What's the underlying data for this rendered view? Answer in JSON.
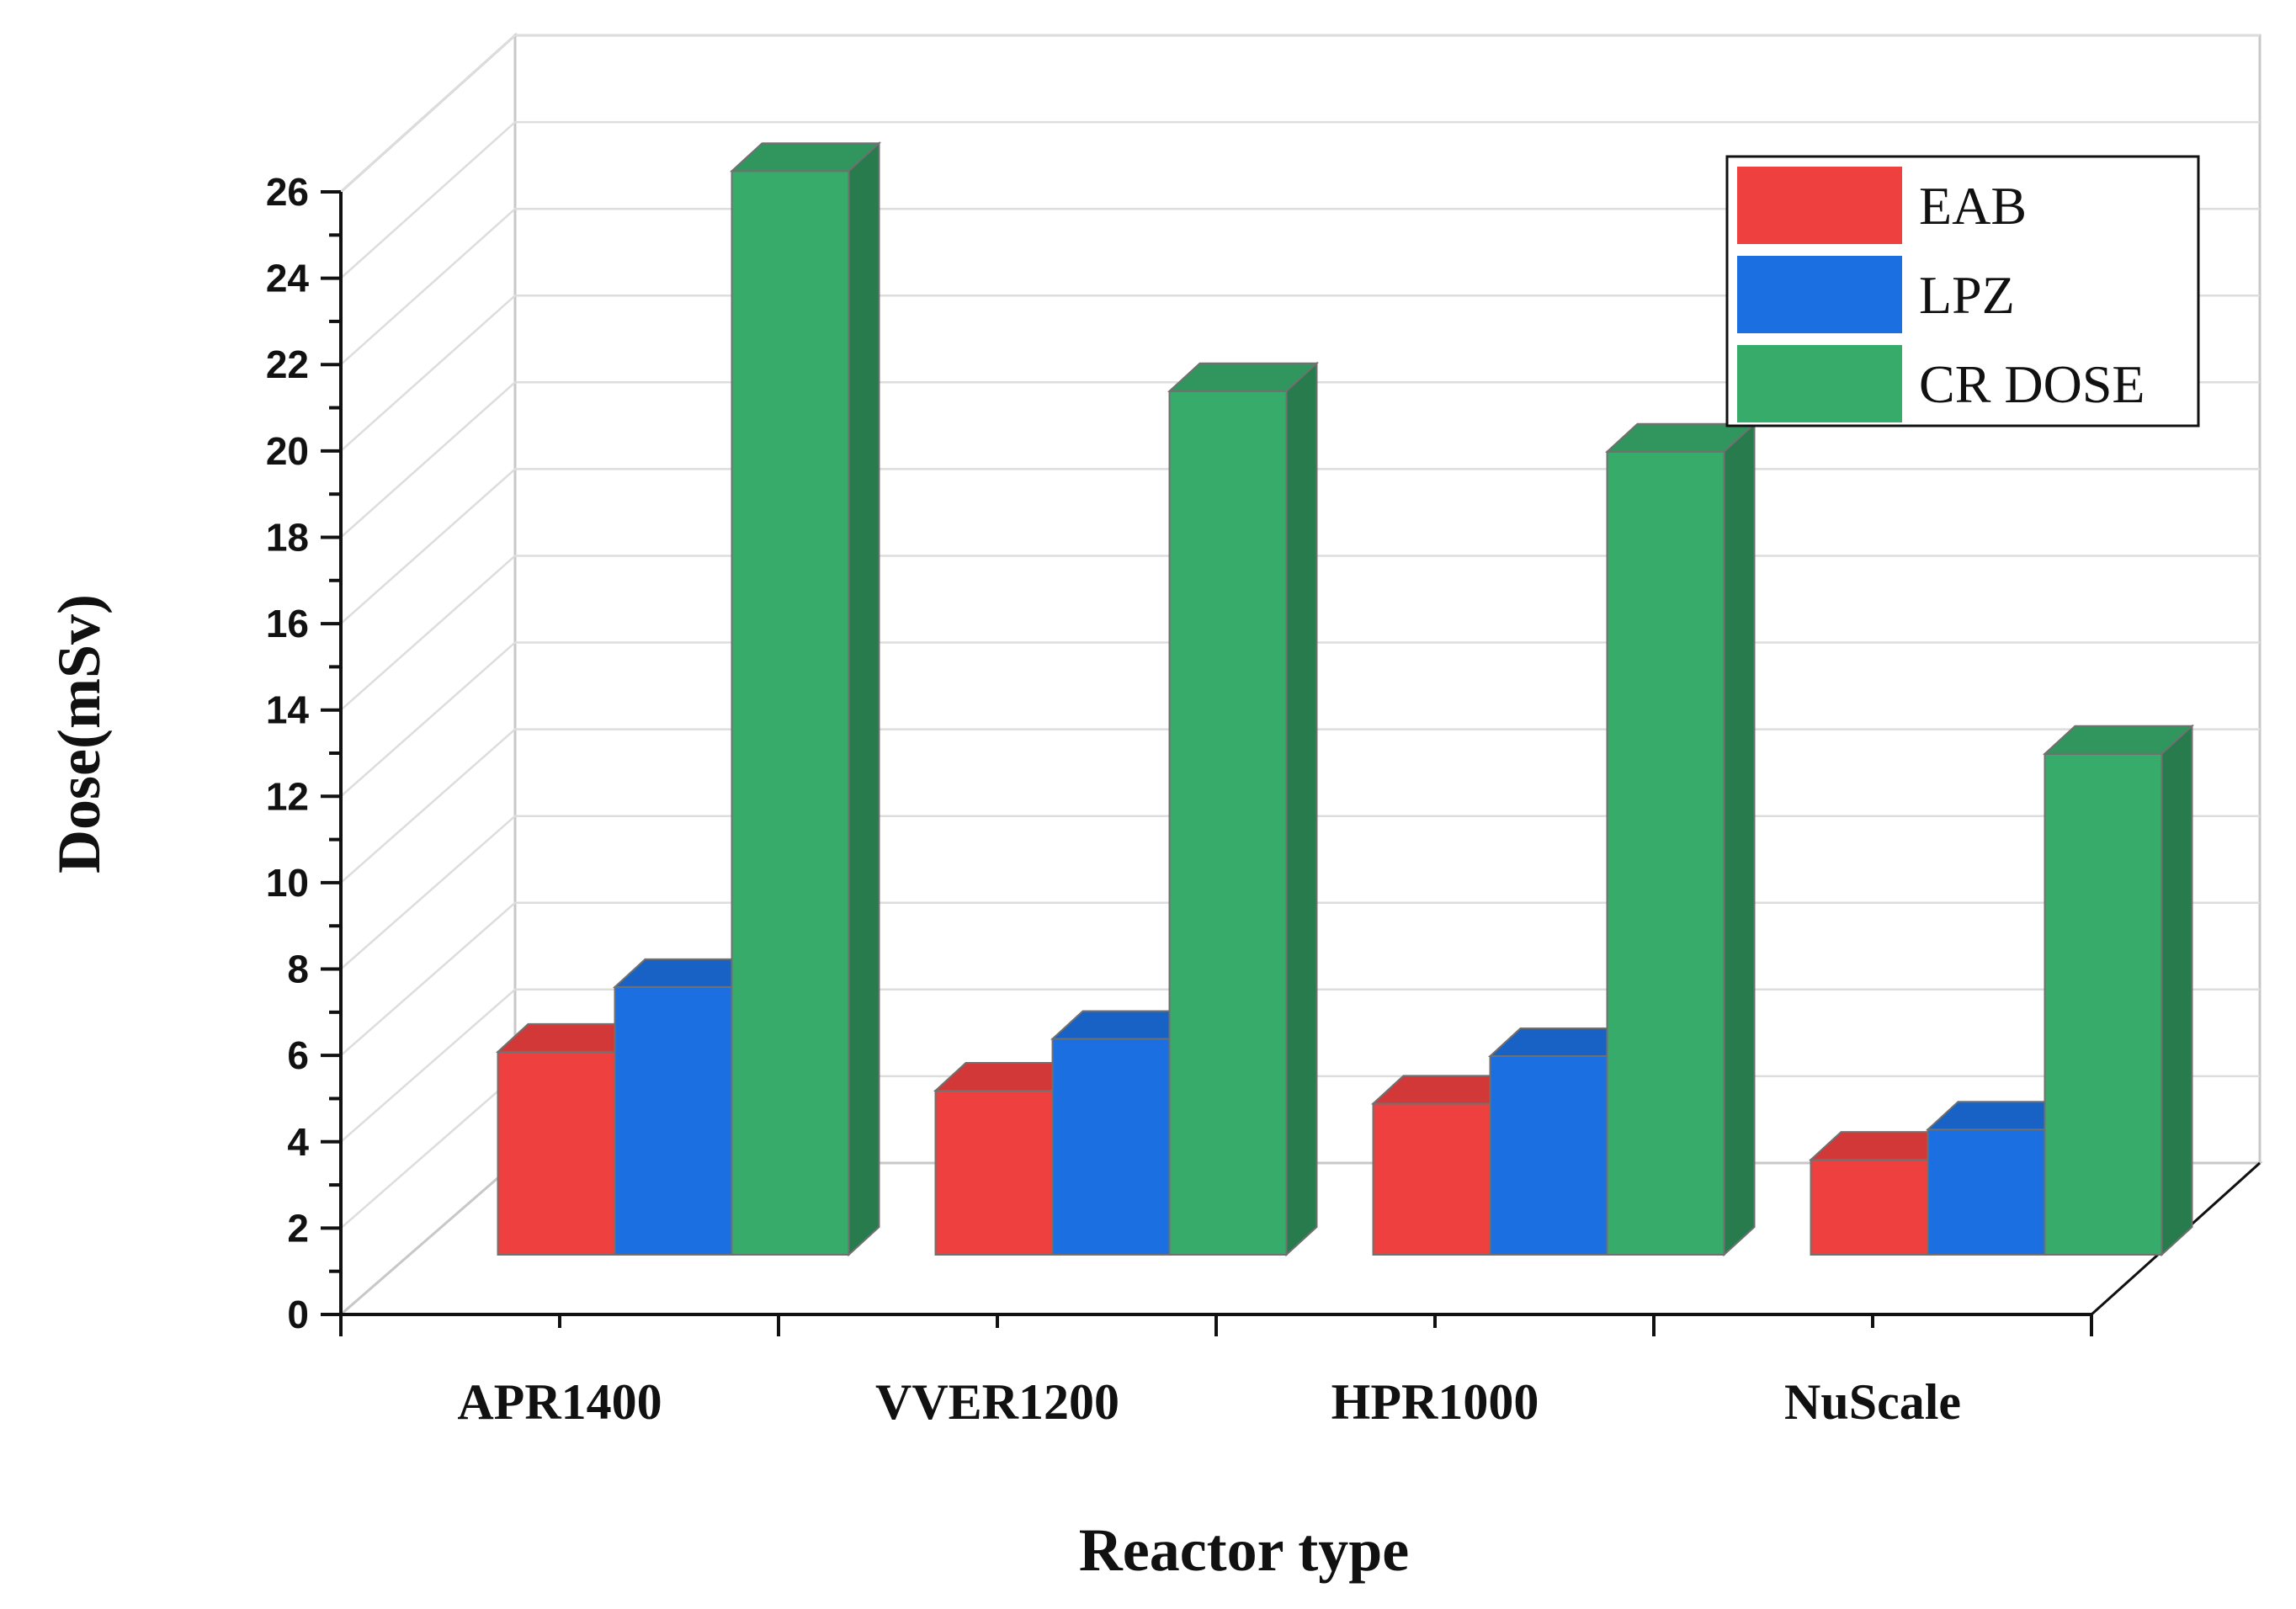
{
  "chart_data": {
    "type": "bar",
    "style": "3d-clustered",
    "title": "",
    "xlabel": "Reactor type",
    "ylabel": "Dose(mSv)",
    "categories": [
      "APR1400",
      "VVER1200",
      "HPR1000",
      "NuScale"
    ],
    "series": [
      {
        "name": "EAB",
        "color": "#ef4040",
        "values": [
          4.7,
          3.8,
          3.5,
          2.2
        ]
      },
      {
        "name": "LPZ",
        "color": "#1b6fe0",
        "values": [
          6.2,
          5.0,
          4.6,
          2.9
        ]
      },
      {
        "name": "CR DOSE",
        "color": "#37ab6a",
        "values": [
          25.1,
          20.0,
          18.6,
          11.6
        ]
      }
    ],
    "ylim": [
      0,
      26
    ],
    "yticks": [
      "0",
      "2",
      "4",
      "6",
      "8",
      "10",
      "12",
      "14",
      "16",
      "18",
      "20",
      "22",
      "24",
      "26"
    ],
    "grid": true,
    "legend": "top-right"
  }
}
